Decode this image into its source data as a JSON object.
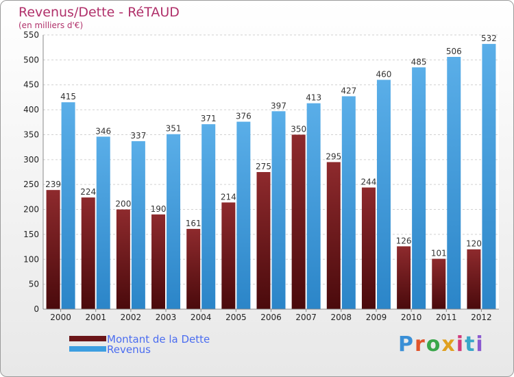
{
  "header": {
    "title": "Revenus/Dette - RéTAUD",
    "subtitle": "(en milliers d'€)"
  },
  "colors": {
    "dette": "#6b1518",
    "revenus": "#3d9ee0"
  },
  "chart_data": {
    "type": "bar",
    "categories": [
      "2000",
      "2001",
      "2002",
      "2003",
      "2004",
      "2005",
      "2006",
      "2007",
      "2008",
      "2009",
      "2010",
      "2011",
      "2012"
    ],
    "series": [
      {
        "name": "Montant de la Dette",
        "values": [
          239,
          224,
          200,
          190,
          161,
          214,
          275,
          350,
          295,
          244,
          126,
          101,
          120
        ]
      },
      {
        "name": "Revenus",
        "values": [
          415,
          346,
          337,
          351,
          371,
          376,
          397,
          413,
          427,
          460,
          485,
          506,
          532
        ]
      }
    ],
    "ylim": [
      0,
      550
    ],
    "yticks": [
      0,
      50,
      100,
      150,
      200,
      250,
      300,
      350,
      400,
      450,
      500,
      550
    ],
    "grid": true,
    "legend": "bottom-left"
  },
  "legend": {
    "items": [
      {
        "label": "Montant de la Dette"
      },
      {
        "label": "Revenus"
      }
    ]
  },
  "logo": {
    "text": "Proxiti",
    "letter_colors": [
      "#3a8fd6",
      "#e0542a",
      "#3aa64a",
      "#e0a020",
      "#d13a7a",
      "#3aa6c8",
      "#8a5ad0"
    ]
  }
}
